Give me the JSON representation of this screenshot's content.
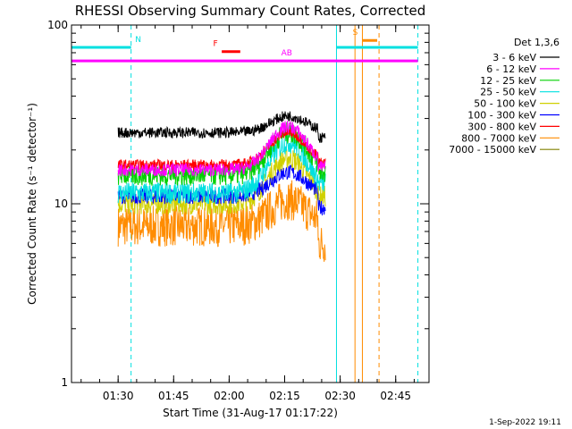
{
  "chart_data": {
    "type": "line",
    "title": "RHESSI Observing Summary Count Rates, Corrected",
    "xlabel": "Start Time (31-Aug-17 01:17:22)",
    "ylabel": "Corrected Count Rate (s⁻¹ detector⁻¹)",
    "yscale": "log",
    "ylim": [
      1,
      100
    ],
    "xlim_minutes": [
      77.4,
      174.0
    ],
    "x_ticks": [
      {
        "t": 90,
        "label": "01:30"
      },
      {
        "t": 105,
        "label": "01:45"
      },
      {
        "t": 120,
        "label": "02:00"
      },
      {
        "t": 135,
        "label": "02:15"
      },
      {
        "t": 150,
        "label": "02:30"
      },
      {
        "t": 165,
        "label": "02:45"
      }
    ],
    "y_ticks": [
      {
        "v": 100,
        "label": "100"
      },
      {
        "v": 10,
        "label": "10"
      },
      {
        "v": 1,
        "label": "1"
      }
    ],
    "legend_title": "Det 1,3,6",
    "series": [
      {
        "name": "3 - 6 keV",
        "color": "#000000",
        "base": 25.0,
        "peak": 31.0,
        "noise": 0.05,
        "drop": 23.5
      },
      {
        "name": "6 - 12 keV",
        "color": "#ff00ff",
        "base": 15.5,
        "peak": 27.0,
        "noise": 0.06,
        "drop": 16.0
      },
      {
        "name": "12 - 25 keV",
        "color": "#00d000",
        "base": 14.5,
        "peak": 25.0,
        "noise": 0.1,
        "drop": 15.0
      },
      {
        "name": "25 - 50 keV",
        "color": "#00e0e0",
        "base": 11.5,
        "peak": 22.0,
        "noise": 0.1,
        "drop": 13.0
      },
      {
        "name": "50 - 100 keV",
        "color": "#d0d000",
        "base": 10.0,
        "peak": 18.0,
        "noise": 0.1,
        "drop": 11.0
      },
      {
        "name": "100 - 300 keV",
        "color": "#0000ff",
        "base": 11.0,
        "peak": 15.0,
        "noise": 0.07,
        "drop": 9.5
      },
      {
        "name": "300 - 800 keV",
        "color": "#ff0000",
        "base": 16.5,
        "peak": 25.0,
        "noise": 0.05,
        "drop": 17.0
      },
      {
        "name": "800 - 7000 keV",
        "color": "#ff8c00",
        "base": 7.5,
        "peak": 10.5,
        "noise": 0.12,
        "drop": 6.0
      },
      {
        "name": "7000 - 15000 keV",
        "color": "#808000",
        "base": 0,
        "peak": 0,
        "noise": 0,
        "drop": 0
      }
    ],
    "data_span_minutes": [
      90,
      146
    ],
    "peak_time_minutes": 136,
    "flags": [
      {
        "label": "N",
        "color": "#00e0e0",
        "t_start": 77.4,
        "t_end": 93.5,
        "level": 75
      },
      {
        "label": "F",
        "color": "#ff0000",
        "t_start": 118.0,
        "t_end": 123.0,
        "level": 71
      },
      {
        "label": "AB",
        "color": "#ff00ff",
        "t_start": 77.4,
        "t_end": 171.0,
        "level": 63
      },
      {
        "label": "S",
        "color": "#ff8c00",
        "t_start": 156.0,
        "t_end": 160.0,
        "level": 82
      },
      {
        "label": "",
        "color": "#00e0e0",
        "t_start": 149.0,
        "t_end": 171.0,
        "level": 75
      }
    ],
    "vertical_markers": [
      {
        "t": 93.5,
        "color": "#00e0e0",
        "style": "dashed"
      },
      {
        "t": 149.0,
        "color": "#00e0e0",
        "style": "solid"
      },
      {
        "t": 171.0,
        "color": "#00e0e0",
        "style": "dashed"
      },
      {
        "t": 154.0,
        "color": "#ff8c00",
        "style": "solid"
      },
      {
        "t": 156.0,
        "color": "#ff8c00",
        "style": "solid"
      },
      {
        "t": 160.5,
        "color": "#ff8c00",
        "style": "dashed"
      }
    ]
  },
  "footer": {
    "timestamp": "1-Sep-2022 19:11"
  }
}
